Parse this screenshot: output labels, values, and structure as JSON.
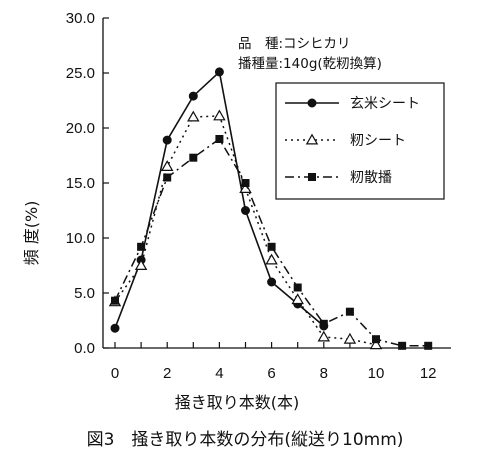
{
  "chart_data": {
    "type": "line",
    "xlabel": "掻き取り本数(本)",
    "ylabel": "頻 度(%)",
    "caption": "図3　掻き取り本数の分布(縦送り10mm)",
    "annotations": {
      "variety": "品　種:コシヒカリ",
      "seeding_rate": "播種量:140g(乾籾換算)"
    },
    "xlim": [
      0,
      12
    ],
    "ylim": [
      0,
      30
    ],
    "xticks": [
      "0",
      "2",
      "4",
      "6",
      "8",
      "10",
      "12"
    ],
    "yticks": [
      "0.0",
      "5.0",
      "10.0",
      "15.0",
      "20.0",
      "25.0",
      "30.0"
    ],
    "grid": false,
    "legend_position": "top-right",
    "series": [
      {
        "name": "玄米シート",
        "marker": "circle",
        "line": "solid",
        "x": [
          0,
          1,
          2,
          3,
          4,
          5,
          6,
          7,
          8
        ],
        "values": [
          1.8,
          8.0,
          18.9,
          22.9,
          25.1,
          12.5,
          6.0,
          4.0,
          2.0
        ]
      },
      {
        "name": "籾シート",
        "marker": "triangle-open",
        "line": "dotted",
        "x": [
          0,
          1,
          2,
          3,
          4,
          5,
          6,
          7,
          8,
          9,
          10
        ],
        "values": [
          4.2,
          7.5,
          16.5,
          21.0,
          21.1,
          14.5,
          8.0,
          4.4,
          1.0,
          0.8,
          0.3
        ]
      },
      {
        "name": "籾散播",
        "marker": "square",
        "line": "dashdot",
        "x": [
          0,
          1,
          2,
          3,
          4,
          5,
          6,
          7,
          8,
          9,
          10,
          11,
          12
        ],
        "values": [
          4.3,
          9.2,
          15.5,
          17.3,
          19.0,
          15.0,
          9.2,
          5.5,
          2.2,
          3.3,
          0.8,
          0.2,
          0.2
        ]
      }
    ]
  }
}
